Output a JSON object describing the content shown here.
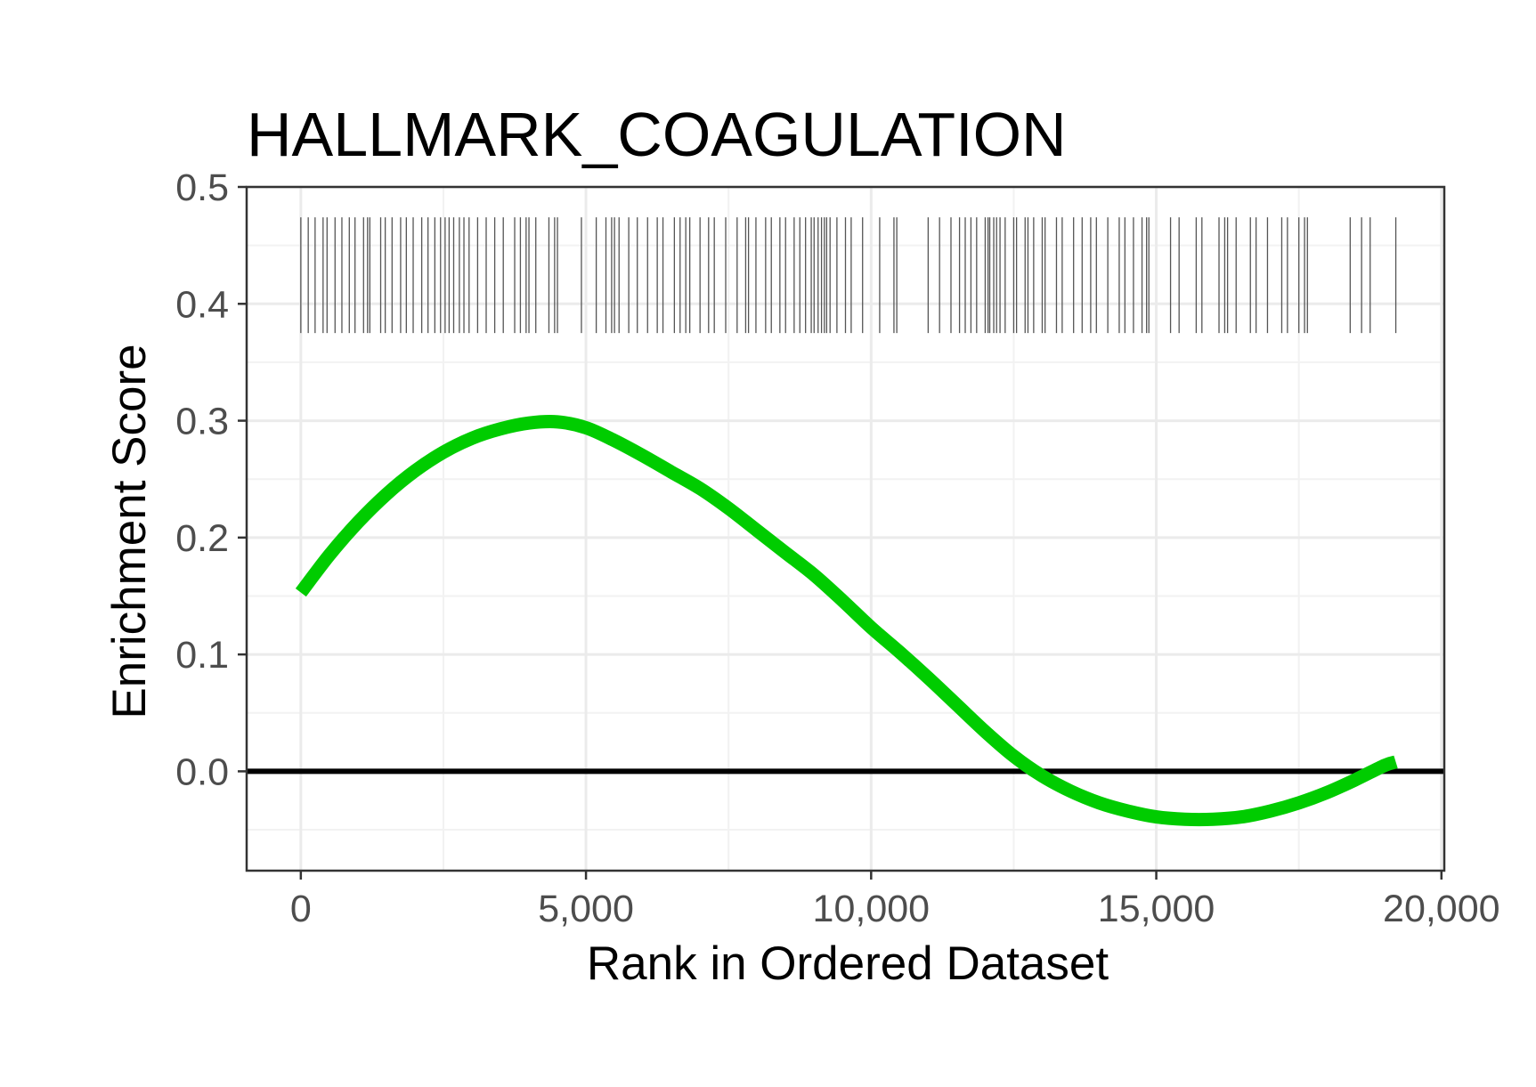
{
  "chart_data": {
    "type": "line",
    "title": "HALLMARK_COAGULATION",
    "xlabel": "Rank in Ordered Dataset",
    "ylabel": "Enrichment Score",
    "xlim": [
      -950,
      20050
    ],
    "ylim": [
      -0.085,
      0.5
    ],
    "x_ticks": [
      0,
      5000,
      10000,
      15000,
      20000
    ],
    "x_tick_labels": [
      "0",
      "5,000",
      "10,000",
      "15,000",
      "20,000"
    ],
    "y_ticks": [
      0.0,
      0.1,
      0.2,
      0.3,
      0.4,
      0.5
    ],
    "y_tick_labels": [
      "0.0",
      "0.1",
      "0.2",
      "0.3",
      "0.4",
      "0.5"
    ],
    "grid": true,
    "reference_line": {
      "y": 0.0,
      "color": "#000000"
    },
    "series": [
      {
        "color": "#00cc00",
        "x": [
          0,
          500,
          1000,
          1500,
          2000,
          2500,
          3000,
          3500,
          4000,
          4500,
          5000,
          5500,
          6000,
          6500,
          7000,
          7500,
          8000,
          8500,
          9000,
          9500,
          10000,
          10500,
          11000,
          11500,
          12000,
          12500,
          13000,
          13500,
          14000,
          14500,
          15000,
          15500,
          16000,
          16500,
          17000,
          17500,
          18000,
          18500,
          19000,
          19200
        ],
        "y": [
          0.153,
          0.185,
          0.213,
          0.237,
          0.257,
          0.273,
          0.285,
          0.293,
          0.298,
          0.299,
          0.294,
          0.283,
          0.27,
          0.256,
          0.242,
          0.225,
          0.206,
          0.187,
          0.168,
          0.146,
          0.123,
          0.102,
          0.08,
          0.057,
          0.034,
          0.013,
          -0.004,
          -0.017,
          -0.027,
          -0.034,
          -0.039,
          -0.041,
          -0.041,
          -0.039,
          -0.034,
          -0.027,
          -0.018,
          -0.007,
          0.005,
          0.008
        ]
      }
    ],
    "gene_hits_band": {
      "ymin": 0.375,
      "ymax": 0.474,
      "color": "#555555"
    },
    "gene_hits": [
      0,
      130,
      250,
      390,
      460,
      600,
      720,
      850,
      950,
      1100,
      1170,
      1210,
      1400,
      1480,
      1600,
      1750,
      1850,
      1970,
      2120,
      2230,
      2350,
      2450,
      2530,
      2600,
      2680,
      2780,
      2860,
      2950,
      3100,
      3250,
      3400,
      3550,
      3750,
      3850,
      3950,
      4000,
      4120,
      4350,
      4450,
      4500,
      4920,
      5180,
      5350,
      5450,
      5500,
      5580,
      5750,
      5900,
      6080,
      6250,
      6350,
      6550,
      6650,
      6750,
      6820,
      7000,
      7150,
      7250,
      7450,
      7650,
      7800,
      7850,
      7980,
      8150,
      8250,
      8400,
      8500,
      8650,
      8750,
      8850,
      8950,
      9000,
      9070,
      9130,
      9180,
      9220,
      9280,
      9400,
      9550,
      9650,
      9850,
      10150,
      10400,
      10450,
      11000,
      11200,
      11400,
      11550,
      11650,
      11750,
      11850,
      12000,
      12050,
      12080,
      12150,
      12200,
      12260,
      12350,
      12500,
      12550,
      12700,
      12750,
      12850,
      13000,
      13050,
      13250,
      13350,
      13550,
      13700,
      13850,
      13950,
      14150,
      14350,
      14450,
      14600,
      14750,
      14830,
      14870,
      15250,
      15400,
      15700,
      15800,
      16100,
      16200,
      16250,
      16400,
      16650,
      16750,
      16950,
      17200,
      17300,
      17500,
      17600,
      17650,
      18400,
      18600,
      18750,
      19200
    ]
  }
}
